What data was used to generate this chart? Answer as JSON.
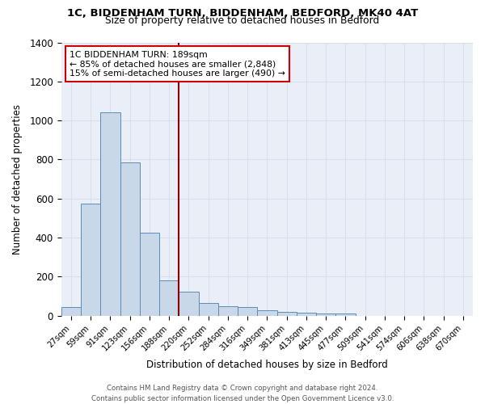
{
  "title_line1": "1C, BIDDENHAM TURN, BIDDENHAM, BEDFORD, MK40 4AT",
  "title_line2": "Size of property relative to detached houses in Bedford",
  "xlabel": "Distribution of detached houses by size in Bedford",
  "ylabel": "Number of detached properties",
  "bar_labels": [
    "27sqm",
    "59sqm",
    "91sqm",
    "123sqm",
    "156sqm",
    "188sqm",
    "220sqm",
    "252sqm",
    "284sqm",
    "316sqm",
    "349sqm",
    "381sqm",
    "413sqm",
    "445sqm",
    "477sqm",
    "509sqm",
    "541sqm",
    "574sqm",
    "606sqm",
    "638sqm",
    "670sqm"
  ],
  "bar_values": [
    45,
    575,
    1040,
    785,
    425,
    180,
    125,
    65,
    50,
    45,
    27,
    22,
    15,
    10,
    10,
    0,
    0,
    0,
    0,
    0,
    0
  ],
  "bar_color": "#c8d8e8",
  "bar_edge_color": "#5b8db8",
  "grid_color": "#d8e0ec",
  "background_color": "#eaeff7",
  "vline_x": 5.5,
  "vline_color": "#8b0000",
  "annotation_line1": "1C BIDDENHAM TURN: 189sqm",
  "annotation_line2": "← 85% of detached houses are smaller (2,848)",
  "annotation_line3": "15% of semi-detached houses are larger (490) →",
  "annotation_box_facecolor": "#ffffff",
  "annotation_box_edgecolor": "#cc0000",
  "ylim": [
    0,
    1400
  ],
  "yticks": [
    0,
    200,
    400,
    600,
    800,
    1000,
    1200,
    1400
  ],
  "footnote_line1": "Contains HM Land Registry data © Crown copyright and database right 2024.",
  "footnote_line2": "Contains public sector information licensed under the Open Government Licence v3.0."
}
